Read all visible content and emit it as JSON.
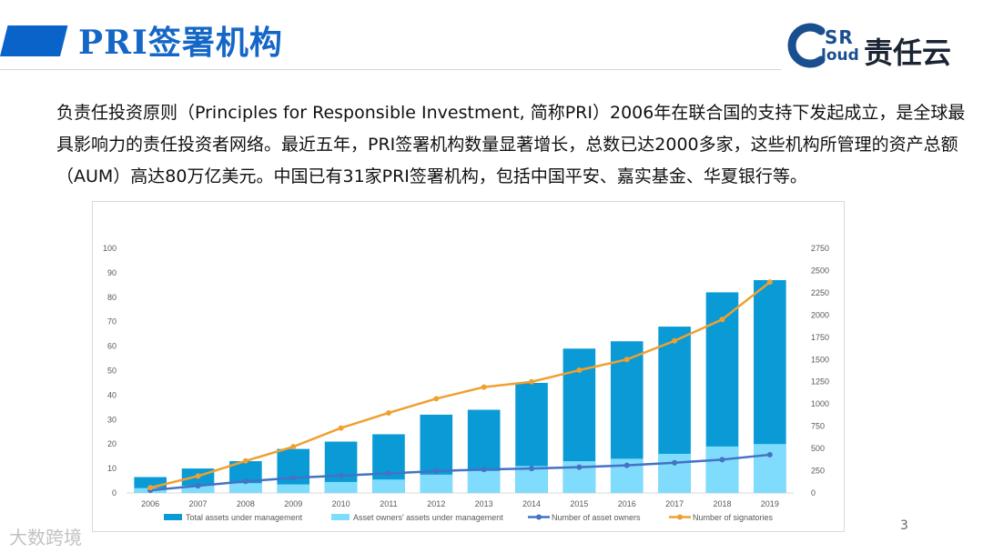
{
  "header": {
    "title": "PRI签署机构"
  },
  "logo": {
    "text_sr": "SR",
    "text_cloud": "loud",
    "text_cn": "责任云"
  },
  "paragraph": "负责任投资原则（Principles for Responsible Investment, 简称PRI）2006年在联合国的支持下发起成立，是全球最具影响力的责任投资者网络。最近五年，PRI签署机构数量显著增长，总数已达2000多家，这些机构所管理的资产总额（AUM）高达80万亿美元。中国已有31家PRI签署机构，包括中国平安、嘉实基金、华夏银行等。",
  "page_number": "3",
  "watermark": "大数跨境",
  "colors": {
    "total": "#0a9bd6",
    "owners": "#7fdcfc",
    "owners_line": "#4472c4",
    "signatories": "#f0a030",
    "title": "#1567c7"
  },
  "chart_data": {
    "type": "bar",
    "categories": [
      "2006",
      "2007",
      "2008",
      "2009",
      "2010",
      "2011",
      "2012",
      "2013",
      "2014",
      "2015",
      "2016",
      "2017",
      "2018",
      "2019"
    ],
    "series": [
      {
        "name": "Total assets under management",
        "type": "bar",
        "axis": "left",
        "values": [
          6.5,
          10,
          13,
          18,
          21,
          24,
          32,
          34,
          45,
          59,
          62,
          68,
          82,
          87
        ]
      },
      {
        "name": "Asset owners' assets under management",
        "type": "bar",
        "axis": "left",
        "values": [
          2,
          3,
          4,
          3.5,
          4.5,
          5.5,
          7.5,
          9,
          11,
          13,
          14,
          16,
          19,
          20
        ]
      },
      {
        "name": "Number of asset owners",
        "type": "line",
        "axis": "right",
        "values": [
          30,
          80,
          130,
          170,
          195,
          220,
          245,
          265,
          275,
          290,
          310,
          340,
          375,
          430
        ]
      },
      {
        "name": "Number of signatories",
        "type": "line",
        "axis": "right",
        "values": [
          60,
          190,
          360,
          520,
          730,
          900,
          1060,
          1190,
          1250,
          1380,
          1500,
          1710,
          1950,
          2370
        ]
      }
    ],
    "left_axis": {
      "min": 0,
      "max": 100,
      "step": 10,
      "ticks": [
        "0",
        "10",
        "20",
        "30",
        "40",
        "50",
        "60",
        "70",
        "80",
        "90",
        "100"
      ]
    },
    "right_axis": {
      "min": 0,
      "max": 2750,
      "step": 250,
      "ticks": [
        "0",
        "250",
        "500",
        "750",
        "1000",
        "1250",
        "1500",
        "1750",
        "2000",
        "2250",
        "2500",
        "2750"
      ]
    },
    "legend": [
      "Total assets under management",
      "Asset owners' assets under management",
      "Number of asset owners",
      "Number of signatories"
    ]
  }
}
